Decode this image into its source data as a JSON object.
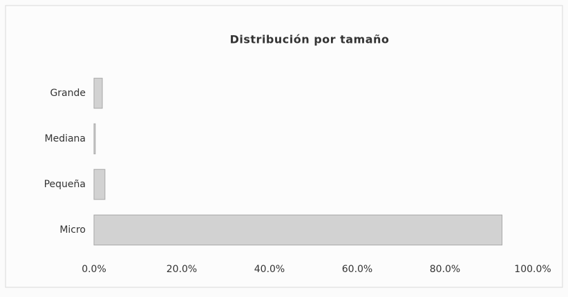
{
  "chart_data": {
    "type": "hbar",
    "title": "Distribución por tamaño",
    "categories": [
      "Grande",
      "Mediana",
      "Pequeña",
      "Micro"
    ],
    "values": [
      1.9,
      0.3,
      2.5,
      93
    ],
    "color": "#d2d2d2",
    "xlim": [
      0,
      100
    ],
    "xticks": [
      {
        "value": 0,
        "label": "0.0%"
      },
      {
        "value": 20,
        "label": "20.0%"
      },
      {
        "value": 40,
        "label": "40.0%"
      },
      {
        "value": 60,
        "label": "60.0%"
      },
      {
        "value": 80,
        "label": "80.0%"
      },
      {
        "value": 100,
        "label": "100.0%"
      }
    ],
    "grid": false
  }
}
